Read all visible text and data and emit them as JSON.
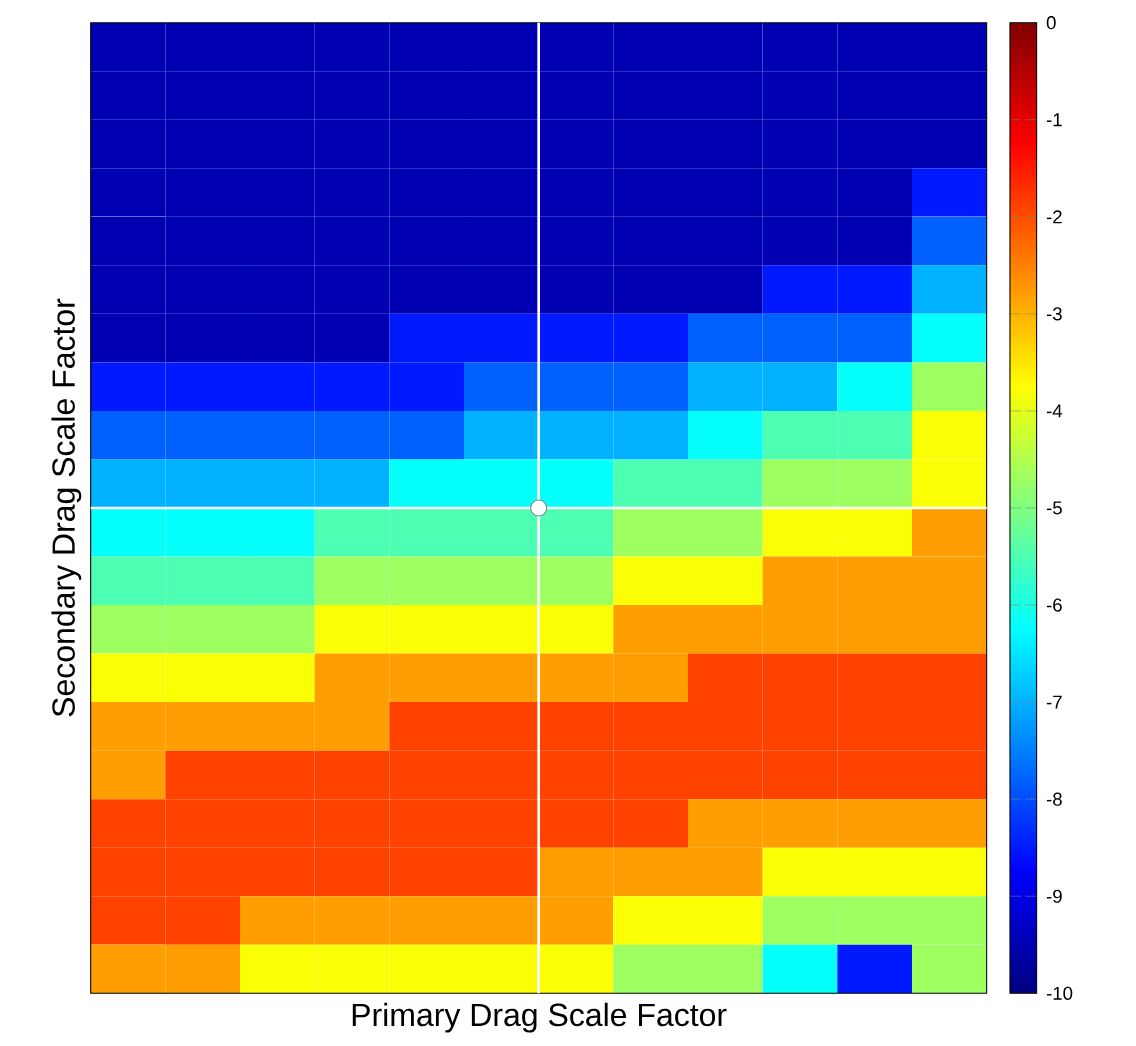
{
  "chart_data": {
    "type": "heatmap",
    "xlabel": "Primary Drag Scale Factor",
    "ylabel": "Secondary Drag Scale Factor",
    "categories": [
      null,
      null,
      null,
      null,
      null,
      null,
      null,
      null,
      null,
      null,
      null,
      null
    ],
    "y_categories": [
      null,
      null,
      null,
      null,
      null,
      null,
      null,
      null,
      null,
      null,
      null,
      null,
      null,
      null,
      null,
      null,
      null,
      null,
      null,
      null
    ],
    "cells": [
      [
        -9.5,
        -9.5,
        -9.5,
        -9.5,
        -9.5,
        -9.5,
        -9.5,
        -9.5,
        -9.5,
        -9.5,
        -9.5,
        -9.5
      ],
      [
        -9.5,
        -9.5,
        -9.5,
        -9.5,
        -9.5,
        -9.5,
        -9.5,
        -9.5,
        -9.5,
        -9.5,
        -9.5,
        -9.5
      ],
      [
        -9.5,
        -9.5,
        -9.5,
        -9.5,
        -9.5,
        -9.5,
        -9.5,
        -9.5,
        -9.5,
        -9.5,
        -9.5,
        -9.5
      ],
      [
        -9.5,
        -9.5,
        -9.5,
        -9.5,
        -9.5,
        -9.5,
        -9.5,
        -9.5,
        -9.5,
        -9.5,
        -9.5,
        -8.5
      ],
      [
        -9.5,
        -9.5,
        -9.5,
        -9.5,
        -9.5,
        -9.5,
        -9.5,
        -9.5,
        -9.5,
        -9.5,
        -9.5,
        -7.8
      ],
      [
        -9.5,
        -9.5,
        -9.5,
        -9.5,
        -9.5,
        -9.5,
        -9.5,
        -9.5,
        -9.5,
        -8.5,
        -8.5,
        -7.0
      ],
      [
        -9.5,
        -9.5,
        -9.5,
        -9.5,
        -8.5,
        -8.5,
        -8.5,
        -8.5,
        -7.8,
        -7.8,
        -7.8,
        -6.2
      ],
      [
        -8.5,
        -8.5,
        -8.5,
        -8.5,
        -8.5,
        -7.8,
        -7.8,
        -7.8,
        -7.0,
        -7.0,
        -6.2,
        -4.7
      ],
      [
        -7.8,
        -7.8,
        -7.8,
        -7.8,
        -7.8,
        -7.0,
        -7.0,
        -7.0,
        -6.2,
        -5.5,
        -5.5,
        -3.8
      ],
      [
        -7.0,
        -7.0,
        -7.0,
        -7.0,
        -6.2,
        -6.2,
        -6.2,
        -5.5,
        -5.5,
        -4.7,
        -4.7,
        -3.8
      ],
      [
        -6.2,
        -6.2,
        -6.2,
        -5.5,
        -5.5,
        -5.5,
        -5.5,
        -4.7,
        -4.7,
        -3.8,
        -3.8,
        -2.8
      ],
      [
        -5.5,
        -5.5,
        -5.5,
        -4.7,
        -4.7,
        -4.7,
        -4.7,
        -3.8,
        -3.8,
        -2.8,
        -2.8,
        -2.8
      ],
      [
        -4.7,
        -4.7,
        -4.7,
        -3.8,
        -3.8,
        -3.8,
        -3.8,
        -2.8,
        -2.8,
        -2.8,
        -2.8,
        -2.8
      ],
      [
        -3.8,
        -3.8,
        -3.8,
        -2.8,
        -2.8,
        -2.8,
        -2.8,
        -2.8,
        -1.9,
        -1.9,
        -1.9,
        -1.9
      ],
      [
        -2.8,
        -2.8,
        -2.8,
        -2.8,
        -1.9,
        -1.9,
        -1.9,
        -1.9,
        -1.9,
        -1.9,
        -1.9,
        -1.9
      ],
      [
        -2.8,
        -1.9,
        -1.9,
        -1.9,
        -1.9,
        -1.9,
        -1.9,
        -1.9,
        -1.9,
        -1.9,
        -1.9,
        -1.9
      ],
      [
        -1.9,
        -1.9,
        -1.9,
        -1.9,
        -1.9,
        -1.9,
        -1.9,
        -1.9,
        -2.8,
        -2.8,
        -2.8,
        -2.8
      ],
      [
        -1.9,
        -1.9,
        -1.9,
        -1.9,
        -1.9,
        -1.9,
        -2.8,
        -2.8,
        -2.8,
        -3.8,
        -3.8,
        -3.8
      ],
      [
        -1.9,
        -1.9,
        -2.8,
        -2.8,
        -2.8,
        -2.8,
        -2.8,
        -3.8,
        -3.8,
        -4.7,
        -4.7,
        -4.7
      ],
      [
        -2.8,
        -2.8,
        -3.8,
        -3.8,
        -3.8,
        -3.8,
        -3.8,
        -4.7,
        -4.7,
        -6.2,
        -8.5,
        -4.7
      ]
    ],
    "clim": [
      -10,
      0
    ],
    "cticks": [
      0,
      -1,
      -2,
      -3,
      -4,
      -5,
      -6,
      -7,
      -8,
      -9,
      -10
    ]
  }
}
